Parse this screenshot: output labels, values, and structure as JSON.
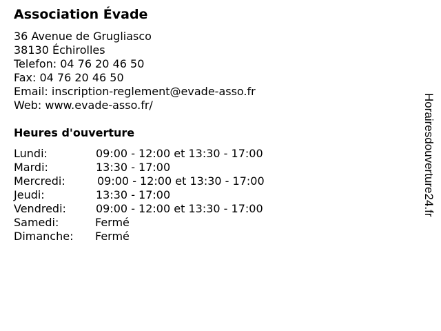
{
  "title": "Association Évade",
  "contact": {
    "address1": "36 Avenue de Grugliasco",
    "address2": "38130 Échirolles",
    "phone": "Telefon: 04 76 20 46 50",
    "fax": "Fax: 04 76 20 46 50",
    "email": "Email: inscription-reglement@evade-asso.fr",
    "web": "Web: www.evade-asso.fr/"
  },
  "hours_title": "Heures d'ouverture",
  "hours": [
    {
      "day": "Lundi:",
      "time": "09:00 - 12:00 et 13:30 - 17:00"
    },
    {
      "day": "Mardi:",
      "time": "13:30 - 17:00"
    },
    {
      "day": "Mercredi:",
      "time": "09:00 - 12:00 et 13:30 - 17:00"
    },
    {
      "day": "Jeudi:",
      "time": "13:30 - 17:00"
    },
    {
      "day": "Vendredi:",
      "time": "09:00 - 12:00 et 13:30 - 17:00"
    },
    {
      "day": "Samedi:",
      "time": "Fermé"
    },
    {
      "day": "Dimanche:",
      "time": "Fermé"
    }
  ],
  "watermark": "Horairesdouverture24.fr"
}
